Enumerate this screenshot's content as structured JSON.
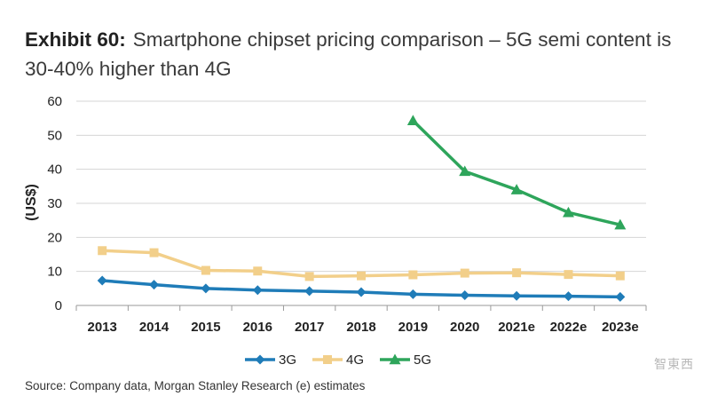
{
  "title": {
    "exhibit": "Exhibit 60:",
    "text": "Smartphone chipset pricing comparison – 5G semi content is 30-40% higher than 4G"
  },
  "source": "Source: Company data, Morgan Stanley Research (e) estimates",
  "watermark": "智東西",
  "chart_data": {
    "type": "line",
    "title": "",
    "xlabel": "",
    "ylabel": "(US$)",
    "ylim": [
      0,
      60
    ],
    "yticks": [
      0,
      10,
      20,
      30,
      40,
      50,
      60
    ],
    "grid": "horizontal",
    "legend": "bottom-center",
    "categories": [
      "2013",
      "2014",
      "2015",
      "2016",
      "2017",
      "2018",
      "2019",
      "2020",
      "2021e",
      "2022e",
      "2023e"
    ],
    "series": [
      {
        "name": "3G",
        "color": "#1f7cb8",
        "marker": "diamond",
        "values": [
          7.3,
          6.1,
          5.0,
          4.5,
          4.2,
          3.9,
          3.3,
          3.0,
          2.8,
          2.7,
          2.5
        ]
      },
      {
        "name": "4G",
        "color": "#f2cf8a",
        "marker": "square",
        "values": [
          16.1,
          15.5,
          10.3,
          10.1,
          8.5,
          8.7,
          9.0,
          9.5,
          9.6,
          9.1,
          8.7
        ]
      },
      {
        "name": "5G",
        "color": "#2ea55b",
        "marker": "triangle",
        "values": [
          null,
          null,
          null,
          null,
          null,
          null,
          54.3,
          39.4,
          34.0,
          27.3,
          23.7
        ]
      }
    ]
  }
}
